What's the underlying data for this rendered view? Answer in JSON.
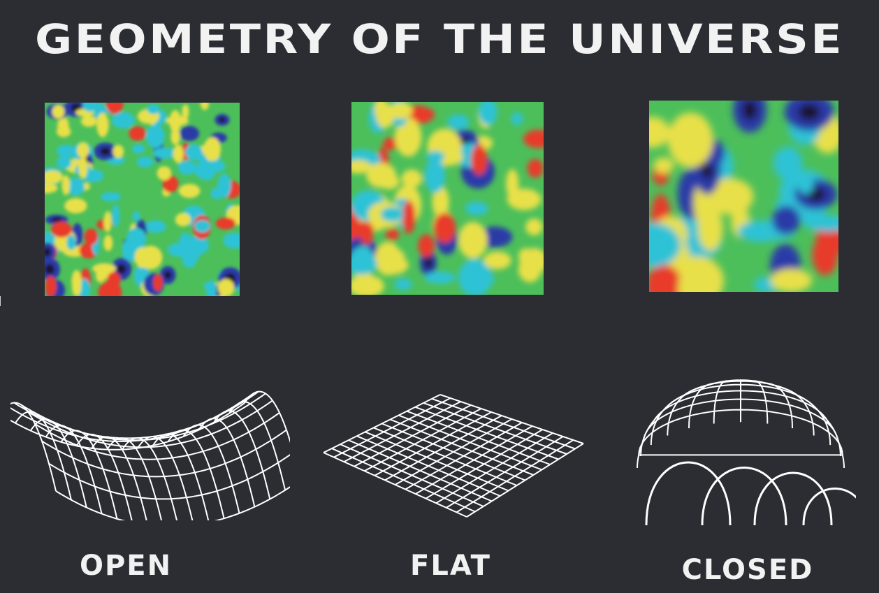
{
  "title": "GEOMETRY OF THE UNIVERSE",
  "panels": [
    {
      "id": "open",
      "label": "OPEN",
      "shape": "saddle"
    },
    {
      "id": "flat",
      "label": "FLAT",
      "shape": "plane"
    },
    {
      "id": "closed",
      "label": "CLOSED",
      "shape": "sphere"
    }
  ],
  "colors": {
    "background": "#2b2d33",
    "text": "#f2f2f2",
    "map_base": "#4cbf5a",
    "map_cool": "#2fc2d6",
    "map_cold": "#2a3aa8",
    "map_coldest": "#1a1430",
    "map_warm": "#e8e04a",
    "map_hot": "#e83a2a"
  }
}
